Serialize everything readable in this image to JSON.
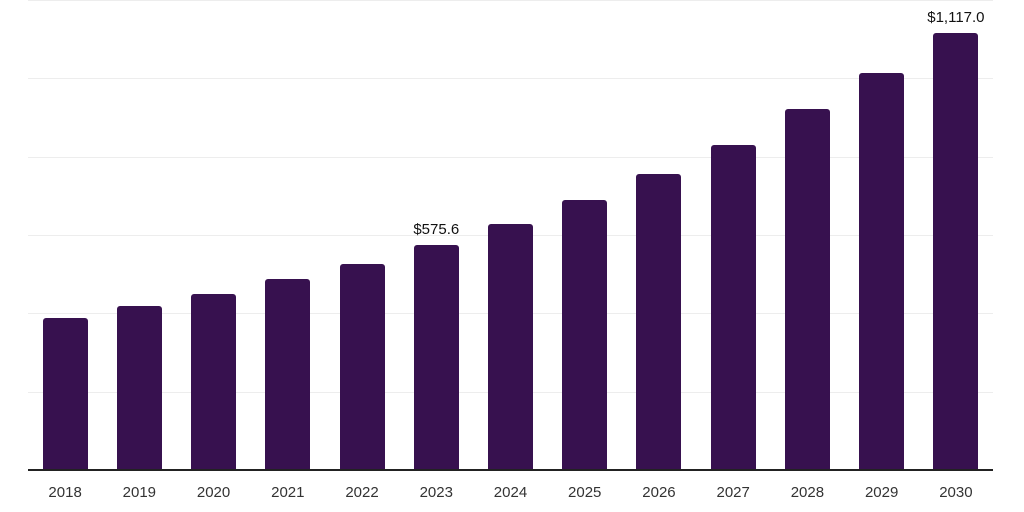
{
  "chart_data": {
    "type": "bar",
    "title": "",
    "xlabel": "",
    "ylabel": "",
    "categories": [
      "2018",
      "2019",
      "2020",
      "2021",
      "2022",
      "2023",
      "2024",
      "2025",
      "2026",
      "2027",
      "2028",
      "2029",
      "2030"
    ],
    "values": [
      388,
      419,
      450,
      487,
      527,
      575.6,
      627,
      689,
      756,
      830,
      922,
      1013,
      1117
    ],
    "bar_labels": [
      "",
      "",
      "",
      "",
      "",
      "$575.6",
      "",
      "",
      "",
      "",
      "",
      "",
      "$1,117.0"
    ],
    "labeled_points": {
      "2023": "$575.6",
      "2030": "$1,117.0"
    },
    "ylim": [
      0,
      1200
    ],
    "grid_step": 200,
    "grid": "horizontal light-gray lines every 200 units, no y-axis tick labels",
    "legend": "none",
    "colors": {
      "bar": "#37114f",
      "axis": "#222222",
      "gridline": "#ededed",
      "value_label": "#111111",
      "tick_label": "#333333",
      "background": "#ffffff"
    }
  }
}
